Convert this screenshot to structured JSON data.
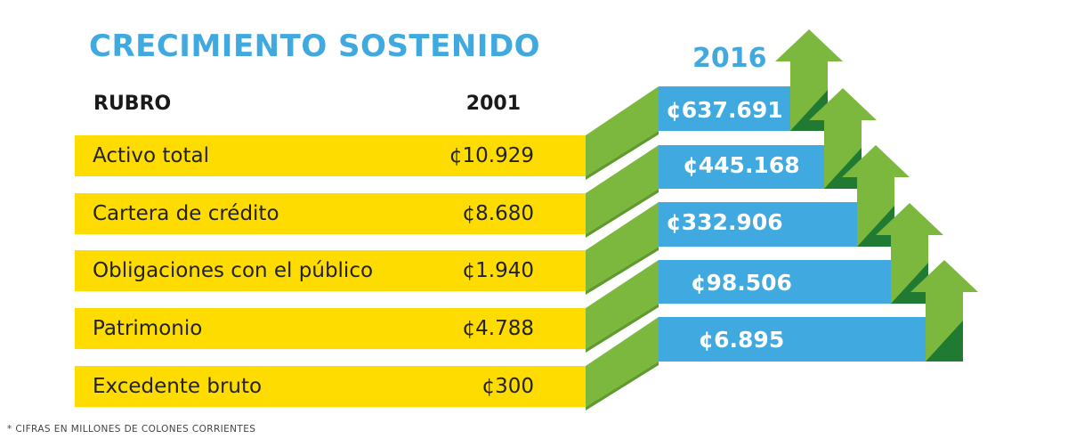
{
  "title": "CRECIMIENTO SOSTENIDO",
  "header": {
    "col_item": "RUBRO",
    "col_2001": "2001",
    "col_2016": "2016"
  },
  "footnote": "* CIFRAS EN MILLONES DE COLONES CORRIENTES",
  "colors": {
    "title_blue": "#3fa9e0",
    "row_yellow": "#ffdc00",
    "arrow_green": "#7cb83e",
    "arrow_dark_green": "#217a32",
    "box_blue": "#3fa9e0"
  },
  "icons": [
    "up-arrow-icon"
  ],
  "chart_data": {
    "type": "table",
    "title": "CRECIMIENTO SOSTENIDO",
    "columns": [
      "RUBRO",
      "2001",
      "2016"
    ],
    "rows": [
      {
        "label": "Activo total",
        "v2001": "¢10.929",
        "v2016": "¢637.691"
      },
      {
        "label": "Cartera de crédito",
        "v2001": "¢8.680",
        "v2016": "¢445.168"
      },
      {
        "label": "Obligaciones con el público",
        "v2001": "¢1.940",
        "v2016": "¢332.906"
      },
      {
        "label": "Patrimonio",
        "v2001": "¢4.788",
        "v2016": "¢98.506"
      },
      {
        "label": "Excedente bruto",
        "v2001": "¢300",
        "v2016": "¢6.895"
      }
    ],
    "unit_note": "* CIFRAS EN MILLONES DE COLONES CORRIENTES"
  }
}
